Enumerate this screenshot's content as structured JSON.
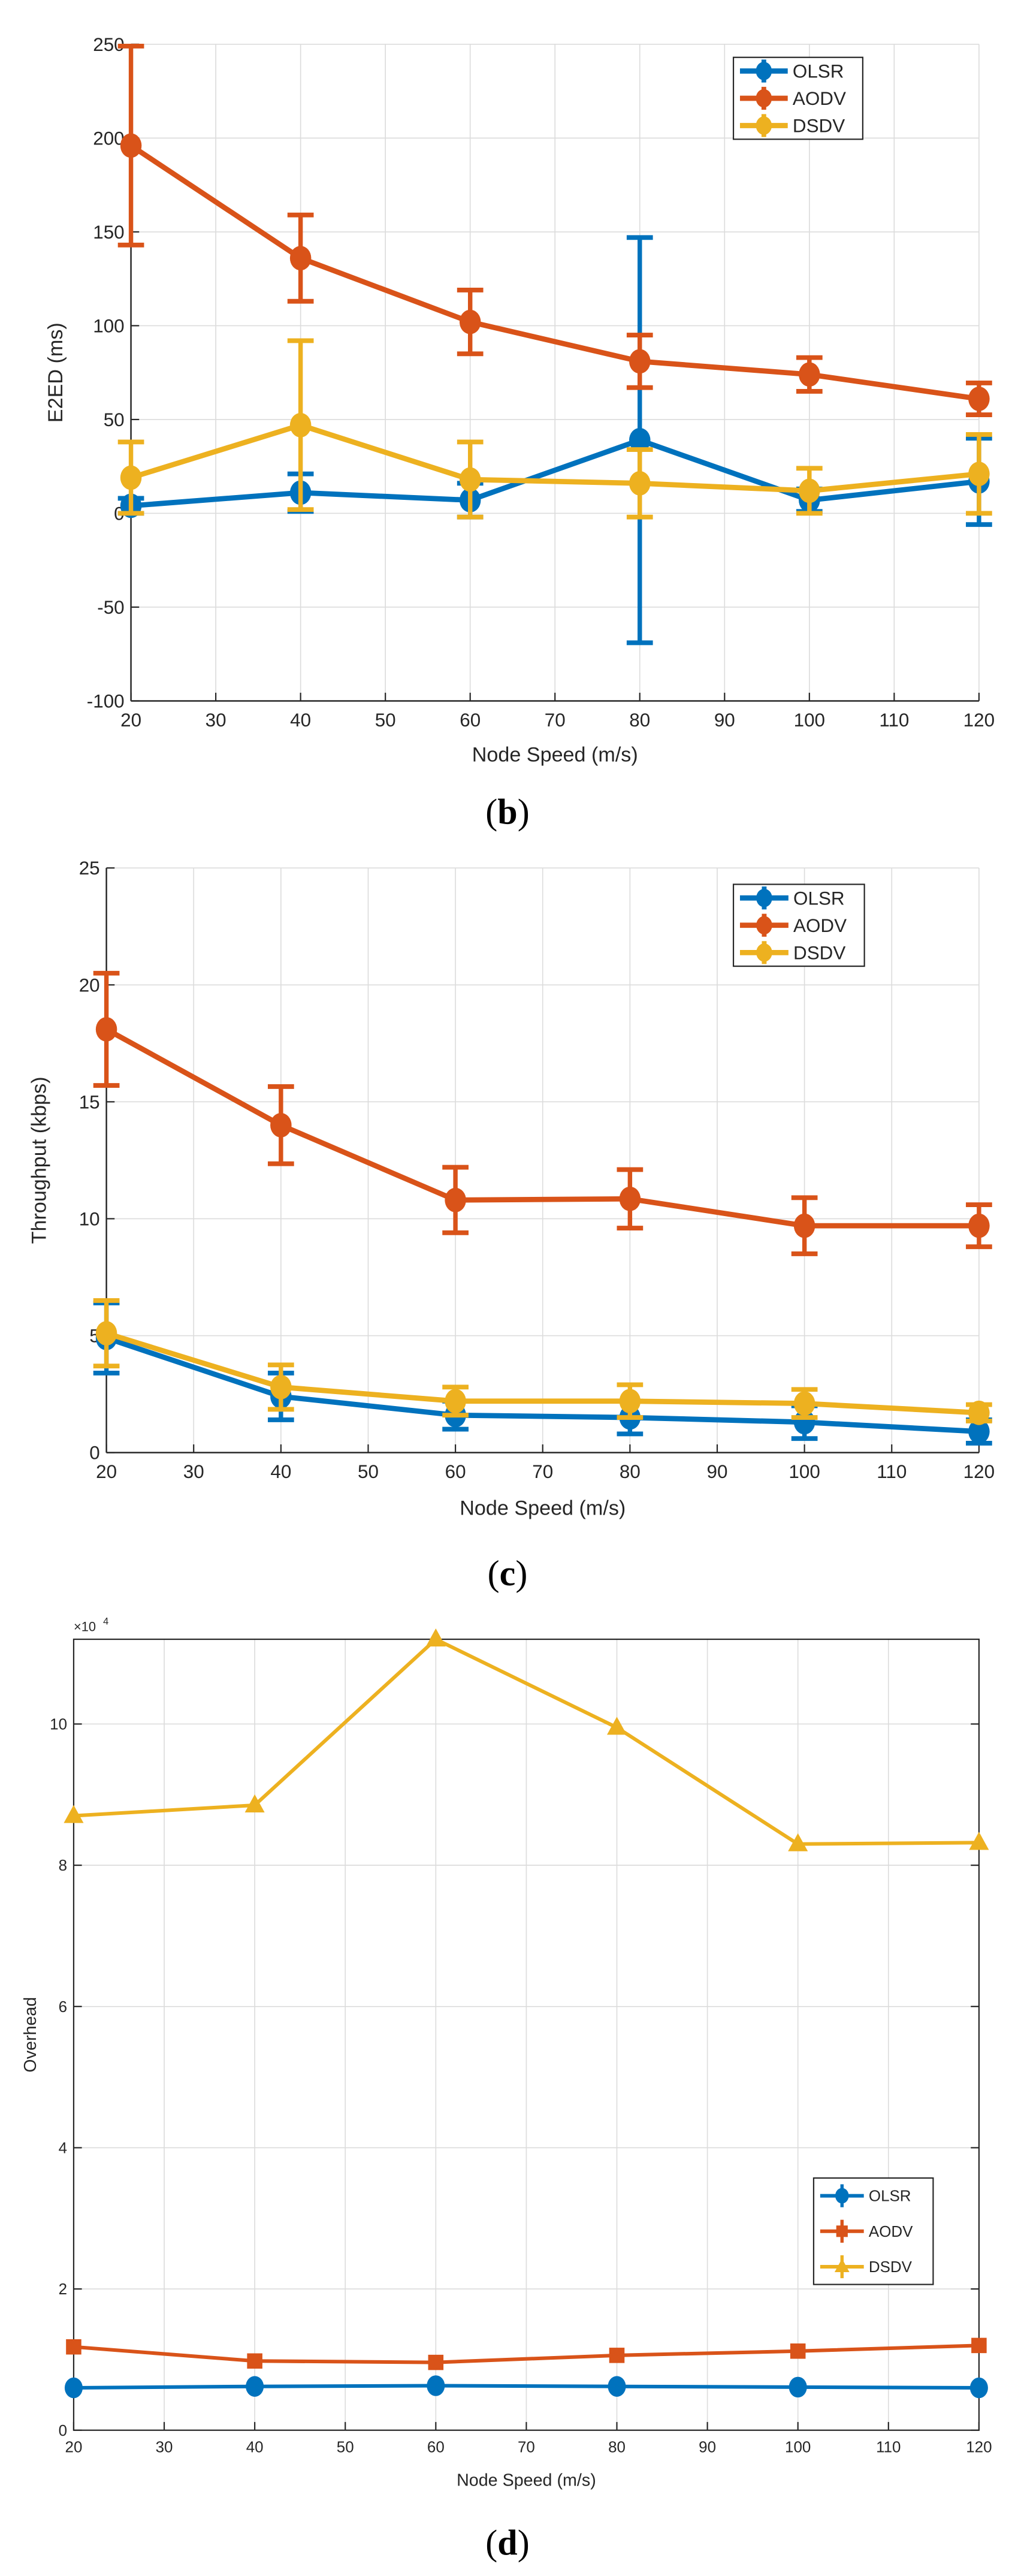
{
  "colors": {
    "OLSR": "#0072BD",
    "AODV": "#D95319",
    "DSDV": "#EDB120"
  },
  "chart_data": [
    {
      "type": "line",
      "caption_letter": "b",
      "title": "",
      "xlabel": "Node Speed (m/s)",
      "ylabel": "E2ED (ms)",
      "xlim": [
        20,
        120
      ],
      "ylim": [
        -100,
        250
      ],
      "xticks": [
        20,
        30,
        40,
        50,
        60,
        70,
        80,
        90,
        100,
        110,
        120
      ],
      "yticks": [
        -100,
        -50,
        0,
        50,
        100,
        150,
        200,
        250
      ],
      "grid": true,
      "legend": "top-right",
      "x": [
        20,
        40,
        60,
        80,
        100,
        120
      ],
      "series": [
        {
          "name": "OLSR",
          "marker": "circle",
          "values": [
            4,
            11,
            7,
            39,
            7,
            17
          ],
          "errors": [
            4,
            10,
            9,
            108,
            6,
            23
          ]
        },
        {
          "name": "AODV",
          "marker": "circle",
          "values": [
            196,
            136,
            102,
            81,
            74,
            61
          ],
          "errors": [
            53,
            23,
            17,
            14,
            9,
            8.5
          ]
        },
        {
          "name": "DSDV",
          "marker": "circle",
          "values": [
            19,
            47,
            18,
            16,
            12,
            21
          ],
          "errors": [
            19,
            45,
            20,
            18,
            12,
            21
          ]
        }
      ]
    },
    {
      "type": "line",
      "caption_letter": "c",
      "title": "",
      "xlabel": "Node Speed (m/s)",
      "ylabel": "Throughput (kbps)",
      "xlim": [
        20,
        120
      ],
      "ylim": [
        0,
        25
      ],
      "xticks": [
        20,
        30,
        40,
        50,
        60,
        70,
        80,
        90,
        100,
        110,
        120
      ],
      "yticks": [
        0,
        5,
        10,
        15,
        20,
        25
      ],
      "grid": true,
      "legend": "top-right",
      "x": [
        20,
        40,
        60,
        80,
        100,
        120
      ],
      "series": [
        {
          "name": "OLSR",
          "marker": "circle",
          "values": [
            4.9,
            2.4,
            1.6,
            1.5,
            1.3,
            0.9
          ],
          "errors": [
            1.5,
            1.0,
            0.6,
            0.7,
            0.7,
            0.5
          ]
        },
        {
          "name": "AODV",
          "marker": "circle",
          "values": [
            18.1,
            14.0,
            10.8,
            10.85,
            9.7,
            9.7
          ],
          "errors": [
            2.4,
            1.65,
            1.4,
            1.25,
            1.2,
            0.9
          ]
        },
        {
          "name": "DSDV",
          "marker": "circle",
          "values": [
            5.1,
            2.8,
            2.2,
            2.2,
            2.1,
            1.7
          ],
          "errors": [
            1.4,
            0.95,
            0.6,
            0.7,
            0.6,
            0.35
          ]
        }
      ]
    },
    {
      "type": "line",
      "caption_letter": "d",
      "title": "",
      "xlabel": "Node Speed (m/s)",
      "ylabel": "Overhead",
      "y_multiplier": "×10",
      "y_exponent": "4",
      "xlim": [
        20,
        120
      ],
      "ylim": [
        0,
        11.2
      ],
      "xticks": [
        20,
        30,
        40,
        50,
        60,
        70,
        80,
        90,
        100,
        110,
        120
      ],
      "yticks": [
        0,
        2,
        4,
        6,
        8,
        10
      ],
      "grid": true,
      "legend": "right",
      "x": [
        20,
        40,
        60,
        80,
        100,
        120
      ],
      "series": [
        {
          "name": "OLSR",
          "marker": "circle",
          "values": [
            0.6,
            0.62,
            0.63,
            0.62,
            0.61,
            0.6
          ],
          "errors": [
            0,
            0,
            0,
            0,
            0,
            0
          ]
        },
        {
          "name": "AODV",
          "marker": "square",
          "values": [
            1.18,
            0.98,
            0.96,
            1.06,
            1.12,
            1.2
          ],
          "errors": [
            0,
            0,
            0,
            0,
            0,
            0
          ]
        },
        {
          "name": "DSDV",
          "marker": "triangle",
          "values": [
            8.7,
            8.85,
            11.2,
            9.95,
            8.3,
            8.32
          ],
          "errors": [
            0,
            0,
            0,
            0,
            0,
            0
          ]
        }
      ]
    }
  ]
}
